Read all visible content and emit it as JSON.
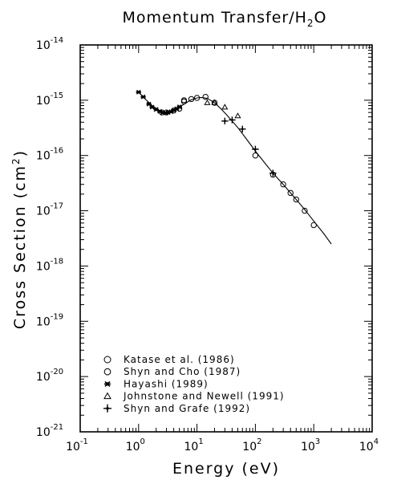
{
  "chart_data": {
    "type": "scatter",
    "title_prefix": "Momentum Transfer/H",
    "title_sub": "2",
    "title_suffix": "O",
    "xlabel": "Energy (eV)",
    "ylabel_prefix": "Cross Section (cm",
    "ylabel_sup": "2",
    "ylabel_suffix": ")",
    "x_scale": "log",
    "y_scale": "log",
    "xlim": [
      0.1,
      10000
    ],
    "ylim": [
      1e-21,
      1e-14
    ],
    "x_ticks": [
      {
        "base": "10",
        "exp": "-1"
      },
      {
        "base": "10",
        "exp": "0"
      },
      {
        "base": "10",
        "exp": "1"
      },
      {
        "base": "10",
        "exp": "2"
      },
      {
        "base": "10",
        "exp": "3"
      },
      {
        "base": "10",
        "exp": "4"
      }
    ],
    "y_ticks": [
      {
        "base": "10",
        "exp": "-21"
      },
      {
        "base": "10",
        "exp": "-20"
      },
      {
        "base": "10",
        "exp": "-19"
      },
      {
        "base": "10",
        "exp": "-18"
      },
      {
        "base": "10",
        "exp": "-17"
      },
      {
        "base": "10",
        "exp": "-16"
      },
      {
        "base": "10",
        "exp": "-15"
      },
      {
        "base": "10",
        "exp": "-14"
      }
    ],
    "grid": false,
    "legend_position": "bottom-left",
    "curve": {
      "x": [
        1.0,
        1.3,
        1.7,
        2.2,
        2.8,
        3.5,
        4.5,
        6.0,
        8.0,
        10,
        12,
        15,
        20,
        25,
        30,
        40,
        50,
        70,
        100,
        150,
        200,
        300,
        500,
        700,
        1000,
        1500,
        2000
      ],
      "y": [
        1.4e-15,
        1.05e-15,
        8e-16,
        6.7e-16,
        6e-16,
        6.2e-16,
        6.9e-16,
        8.5e-16,
        1.02e-15,
        1.1e-15,
        1.12e-15,
        1.08e-15,
        9e-16,
        7.2e-16,
        5.9e-16,
        4.2e-16,
        3.2e-16,
        2e-16,
        1.2e-16,
        7e-17,
        4.8e-17,
        3e-17,
        1.6e-17,
        1.05e-17,
        6.5e-18,
        3.8e-18,
        2.5e-18
      ]
    },
    "series": [
      {
        "name": "Katase et al. (1986)",
        "marker": "circle",
        "x": [
          6,
          8,
          10,
          14,
          20,
          100,
          200,
          300,
          400,
          500,
          700,
          1000
        ],
        "y": [
          9.5e-16,
          1.05e-15,
          1.1e-15,
          1.15e-15,
          9e-16,
          1e-16,
          4.5e-17,
          3e-17,
          2.1e-17,
          1.6e-17,
          1e-17,
          5.5e-18
        ]
      },
      {
        "name": "Shyn and Cho (1987)",
        "marker": "hexagon",
        "x": [
          2.5,
          3.0,
          4.0,
          5.0,
          6.0
        ],
        "y": [
          6e-16,
          6e-16,
          6.5e-16,
          7e-16,
          1e-15
        ]
      },
      {
        "name": "Hayashi (1989)",
        "marker": "asterisk",
        "x": [
          1.0,
          1.2,
          1.5,
          1.7,
          2.0,
          2.3,
          2.6,
          2.9,
          3.2,
          3.6,
          4.0,
          4.5,
          5.0
        ],
        "y": [
          1.4e-15,
          1.15e-15,
          8.5e-16,
          7.5e-16,
          6.8e-16,
          6.3e-16,
          6e-16,
          5.9e-16,
          6e-16,
          6.2e-16,
          6.6e-16,
          7e-16,
          7.6e-16
        ]
      },
      {
        "name": "Johnstone and Newell (1991)",
        "marker": "triangle",
        "x": [
          15,
          20,
          30,
          50
        ],
        "y": [
          9e-16,
          9e-16,
          7.5e-16,
          5.2e-16
        ]
      },
      {
        "name": "Shyn and Grafe (1992)",
        "marker": "plus-diamond",
        "x": [
          30,
          40,
          60,
          100,
          200
        ],
        "y": [
          4.2e-16,
          4.4e-16,
          3e-16,
          1.3e-16,
          4.8e-17
        ]
      }
    ]
  }
}
